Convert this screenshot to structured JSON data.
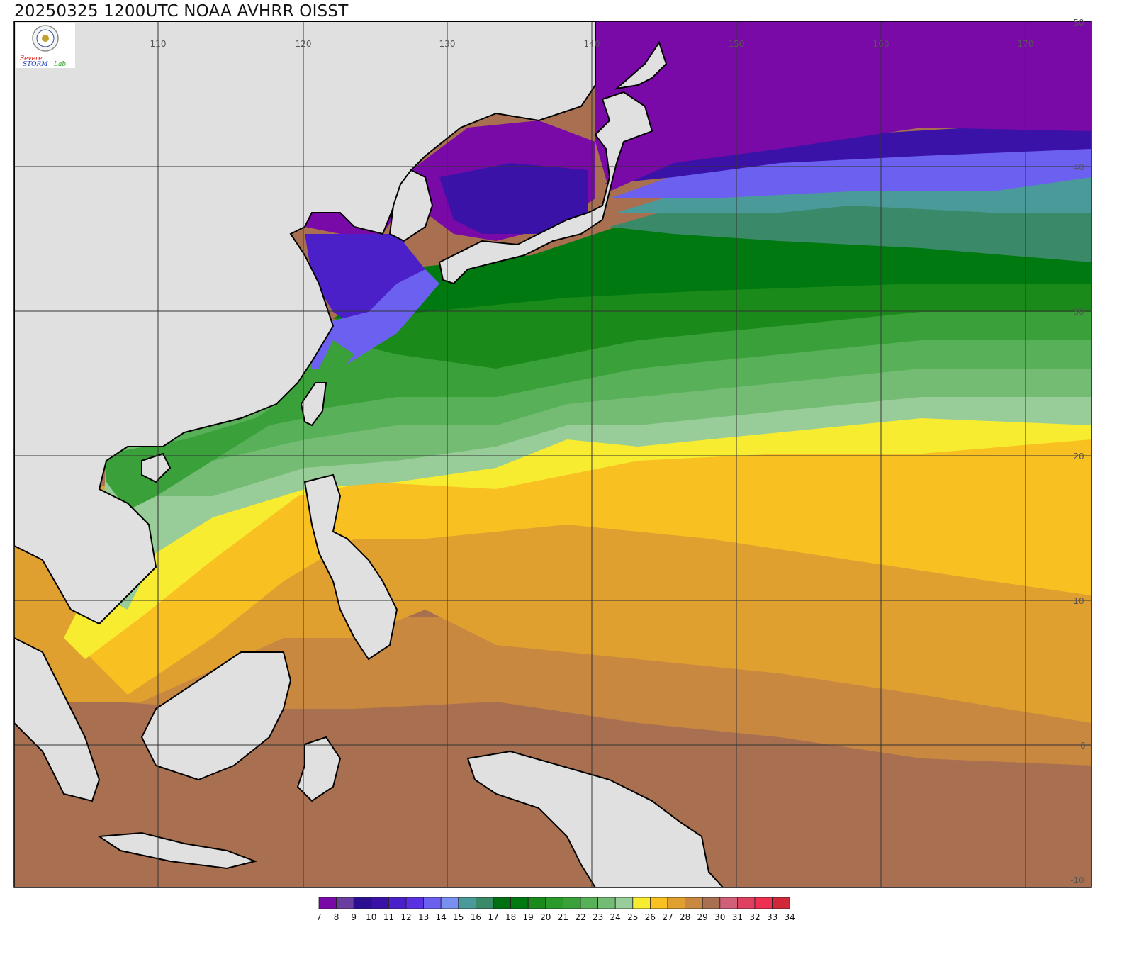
{
  "title": "20250325 1200UTC NOAA AVHRR OISST",
  "logo": {
    "text_primary": "Severe",
    "text_secondary": "STORM",
    "text_lab": "Lab."
  },
  "map": {
    "lon_range": [
      100,
      175
    ],
    "lat_range": [
      -10,
      50
    ],
    "lon_ticks": [
      "110",
      "120",
      "130",
      "140",
      "150",
      "160",
      "170"
    ],
    "lat_ticks": [
      "50",
      "40",
      "30",
      "20",
      "10",
      "0",
      "-10"
    ],
    "land_color": "#e0e0e0",
    "grid_color": "#333333"
  },
  "colorbar": {
    "labels": [
      "7",
      "8",
      "9",
      "10",
      "11",
      "12",
      "13",
      "14",
      "15",
      "16",
      "17",
      "18",
      "19",
      "20",
      "21",
      "22",
      "23",
      "24",
      "25",
      "26",
      "27",
      "28",
      "29",
      "30",
      "31",
      "32",
      "33",
      "34"
    ],
    "colors": [
      "#7a0aa8",
      "#6a3ea0",
      "#2a1090",
      "#3a12a8",
      "#4c20c8",
      "#5a30e0",
      "#6c60f0",
      "#7890f0",
      "#4a9a9a",
      "#3a8a6a",
      "#007010",
      "#007a10",
      "#1a8a1a",
      "#2a9a2a",
      "#3aa03a",
      "#58b058",
      "#74bc74",
      "#98cc98",
      "#f8ec30",
      "#f8c020",
      "#e0a030",
      "#c88840",
      "#a87050",
      "#d06078",
      "#e04060",
      "#f03050",
      "#d02838"
    ]
  }
}
